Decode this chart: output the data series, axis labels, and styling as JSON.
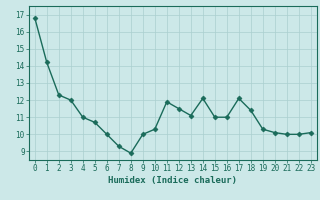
{
  "x": [
    0,
    1,
    2,
    3,
    4,
    5,
    6,
    7,
    8,
    9,
    10,
    11,
    12,
    13,
    14,
    15,
    16,
    17,
    18,
    19,
    20,
    21,
    22,
    23
  ],
  "y": [
    16.8,
    14.2,
    12.3,
    12.0,
    11.0,
    10.7,
    10.0,
    9.3,
    8.9,
    10.0,
    10.3,
    11.9,
    11.5,
    11.1,
    12.1,
    11.0,
    11.0,
    12.1,
    11.4,
    10.3,
    10.1,
    10.0,
    10.0,
    10.1
  ],
  "xlabel": "Humidex (Indice chaleur)",
  "ylim": [
    8.5,
    17.5
  ],
  "yticks": [
    9,
    10,
    11,
    12,
    13,
    14,
    15,
    16,
    17
  ],
  "xticks": [
    0,
    1,
    2,
    3,
    4,
    5,
    6,
    7,
    8,
    9,
    10,
    11,
    12,
    13,
    14,
    15,
    16,
    17,
    18,
    19,
    20,
    21,
    22,
    23
  ],
  "line_color": "#1a6b5a",
  "marker": "D",
  "marker_size": 2.5,
  "bg_color": "#cce8e8",
  "grid_color": "#aacfcf",
  "axis_color": "#1a6b5a",
  "label_fontsize": 6.5,
  "tick_fontsize": 5.5,
  "line_width": 1.0
}
